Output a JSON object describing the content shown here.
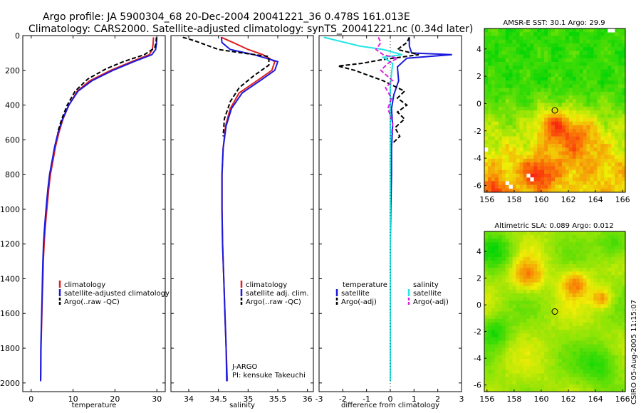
{
  "header": {
    "line1": "Argo profile: JA 5900304_68 20-Dec-2004 20041221_36 0.478S 161.013E",
    "line2": "Climatology: CARS2000. Satellite-adjusted climatology: synTS_20041221.nc (0.34d later)"
  },
  "timestamp": "CSIRO 05-Aug-2005 11:15:07",
  "colors": {
    "red": "#e02020",
    "blue": "#1a1adc",
    "black": "#000000",
    "cyan": "#22e5e5",
    "magenta": "#e020e0"
  },
  "chart_data": [
    {
      "type": "line",
      "title": "",
      "xlabel": "temperature",
      "ylabel": "",
      "xlim": [
        -2,
        32
      ],
      "ylim": [
        2050,
        0
      ],
      "xticks": [
        "0",
        "10",
        "20",
        "30"
      ],
      "yticks": [
        "0",
        "200",
        "400",
        "600",
        "800",
        "1000",
        "1200",
        "1400",
        "1600",
        "1800",
        "2000"
      ],
      "legend": [
        "climatology",
        "satellite-adjusted climatology",
        "Argo(..raw -QC)"
      ],
      "series": [
        {
          "name": "climatology",
          "color": "red",
          "dash": false,
          "x": [
            29.2,
            29.1,
            28.9,
            28.2,
            24,
            19,
            14,
            11,
            9,
            7.6,
            6.6,
            5.8,
            5.2,
            4.6,
            4.2,
            3.9,
            3.6,
            3.3,
            3.1,
            2.9,
            2.8,
            2.65,
            2.55,
            2.45,
            2.35,
            2.3
          ],
          "y": [
            10,
            50,
            80,
            110,
            150,
            200,
            260,
            320,
            400,
            480,
            560,
            640,
            720,
            800,
            880,
            960,
            1040,
            1120,
            1200,
            1300,
            1400,
            1500,
            1600,
            1700,
            1800,
            1980
          ]
        },
        {
          "name": "satellite-adjusted climatology",
          "color": "blue",
          "dash": false,
          "x": [
            30.0,
            29.9,
            29.7,
            28.8,
            24.5,
            19.5,
            14.5,
            11.2,
            9,
            7.5,
            6.4,
            5.6,
            5,
            4.4,
            4,
            3.7,
            3.4,
            3.15,
            2.95,
            2.8,
            2.7,
            2.6,
            2.5,
            2.4,
            2.3,
            2.25
          ],
          "y": [
            10,
            50,
            80,
            110,
            150,
            200,
            260,
            320,
            400,
            480,
            560,
            640,
            720,
            800,
            880,
            960,
            1040,
            1120,
            1200,
            1300,
            1400,
            1500,
            1600,
            1700,
            1800,
            1990
          ]
        },
        {
          "name": "Argo(..raw -QC)",
          "color": "black",
          "dash": true,
          "x": [
            29.9,
            29.8,
            29.5,
            27,
            22,
            18,
            13.5,
            10.5,
            8.6,
            7.3,
            6.3
          ],
          "y": [
            10,
            40,
            70,
            110,
            150,
            190,
            250,
            320,
            400,
            480,
            560
          ]
        }
      ]
    },
    {
      "type": "line",
      "title": "",
      "xlabel": "salinity",
      "ylabel": "",
      "xlim": [
        33.7,
        36.1
      ],
      "ylim": [
        2050,
        0
      ],
      "xticks": [
        "34",
        "34.5",
        "35",
        "35.5",
        "36"
      ],
      "legend": [
        "climatology",
        "satellite adj. clim.",
        "Argo(..raw -QC)"
      ],
      "annotation_lines": [
        "J-ARGO",
        "PI: kensuke Takeuchi"
      ],
      "series": [
        {
          "name": "climatology",
          "color": "red",
          "dash": false,
          "x": [
            34.55,
            34.75,
            35.0,
            35.25,
            35.45,
            35.4,
            35.15,
            34.85,
            34.7,
            34.62,
            34.58,
            34.56,
            34.56,
            34.57,
            34.59,
            34.61,
            34.63,
            34.65
          ],
          "y": [
            10,
            40,
            80,
            110,
            150,
            200,
            260,
            330,
            420,
            520,
            650,
            800,
            1000,
            1200,
            1400,
            1600,
            1800,
            1990
          ]
        },
        {
          "name": "satellite adj. clim.",
          "color": "blue",
          "dash": false,
          "x": [
            34.55,
            34.56,
            34.7,
            35.1,
            35.5,
            35.45,
            35.2,
            34.9,
            34.72,
            34.63,
            34.58,
            34.56,
            34.56,
            34.57,
            34.59,
            34.61,
            34.63,
            34.64
          ],
          "y": [
            10,
            40,
            80,
            110,
            150,
            200,
            260,
            330,
            420,
            520,
            650,
            800,
            1000,
            1200,
            1400,
            1600,
            1800,
            1990
          ]
        },
        {
          "name": "Argo(..raw -QC)",
          "color": "black",
          "dash": true,
          "x": [
            33.9,
            34.1,
            34.3,
            34.5,
            34.9,
            35.35,
            35.35,
            35.1,
            34.85,
            34.7,
            34.6,
            34.58
          ],
          "y": [
            10,
            30,
            55,
            80,
            100,
            120,
            170,
            230,
            300,
            380,
            480,
            580
          ]
        }
      ]
    },
    {
      "type": "line",
      "title": "",
      "xlabel": "difference from climatology",
      "ylabel": "",
      "xlim": [
        -3,
        3
      ],
      "ylim": [
        2050,
        0
      ],
      "xticks": [
        "-3",
        "-2",
        "-1",
        "0",
        "1",
        "2",
        "3"
      ],
      "legend": [
        "temperature",
        "satellite",
        "Argo(-adj)",
        "salinity",
        "satellite",
        "Argo(-adj)"
      ],
      "series": [
        {
          "name": "temperature satellite",
          "color": "blue",
          "dash": false,
          "x": [
            0.8,
            0.8,
            0.9,
            2.6,
            0.7,
            0.3,
            0.35,
            0.15,
            0.05,
            0.1,
            0.05,
            0.05,
            0.02,
            0,
            0,
            0,
            0,
            0
          ],
          "y": [
            10,
            60,
            100,
            110,
            130,
            180,
            260,
            340,
            420,
            520,
            650,
            800,
            1000,
            1200,
            1400,
            1600,
            1800,
            1990
          ]
        },
        {
          "name": "temperature Argo(-adj)",
          "color": "black",
          "dash": true,
          "x": [
            0.8,
            0.7,
            0.3,
            1.2,
            -0.4,
            -1.2,
            -2.2,
            -1.5,
            -0.3,
            0.6,
            0.3,
            0.7,
            0.3,
            0.6,
            0.2,
            0.4,
            0.1
          ],
          "y": [
            10,
            40,
            80,
            110,
            140,
            160,
            175,
            200,
            260,
            320,
            360,
            400,
            440,
            480,
            530,
            580,
            620
          ]
        },
        {
          "name": "salinity satellite",
          "color": "cyan",
          "dash": false,
          "x": [
            -2.8,
            -1.3,
            -0.3,
            0.5,
            -0.3,
            0.1,
            0.05,
            0,
            0,
            0,
            0,
            0,
            0
          ],
          "y": [
            10,
            60,
            80,
            110,
            125,
            160,
            220,
            300,
            400,
            600,
            1000,
            1500,
            1990
          ]
        },
        {
          "name": "salinity Argo(-adj)",
          "color": "magenta",
          "dash": true,
          "x": [
            -0.5,
            -0.4,
            -0.6,
            -0.3,
            0.3,
            -0.1,
            -0.4,
            0.1,
            -0.2,
            0.05,
            -0.1,
            0.1,
            0.05
          ],
          "y": [
            10,
            40,
            80,
            110,
            130,
            160,
            200,
            260,
            300,
            360,
            420,
            500,
            580
          ]
        }
      ]
    },
    {
      "type": "heatmap",
      "title": "AMSR-E SST: 30.1 Argo: 29.9",
      "xticks": [
        "156",
        "158",
        "160",
        "162",
        "164",
        "166"
      ],
      "yticks": [
        "4",
        "2",
        "0",
        "-2",
        "-4",
        "-6"
      ],
      "xlim": [
        155.8,
        166.2
      ],
      "ylim": [
        -6.5,
        5.5
      ],
      "marker": [
        161.0,
        -0.5
      ],
      "hotspots": [
        [
          162.5,
          -2.4,
          1.8
        ],
        [
          159.8,
          -5.2,
          1.2
        ],
        [
          156.5,
          -6.3,
          0.8
        ],
        [
          160.8,
          -1.5,
          1.2
        ]
      ]
    },
    {
      "type": "heatmap",
      "title": "Altimetric SLA: 0.089 Argo: 0.012",
      "xticks": [
        "156",
        "158",
        "160",
        "162",
        "164",
        "166"
      ],
      "yticks": [
        "4",
        "2",
        "0",
        "-2",
        "-4",
        "-6"
      ],
      "xlim": [
        155.8,
        166.2
      ],
      "ylim": [
        -6.5,
        5.5
      ],
      "marker": [
        161.0,
        -0.5
      ],
      "hotspots": [
        [
          159.0,
          2.2,
          1.2
        ],
        [
          162.5,
          1.6,
          1.0
        ],
        [
          164.5,
          0.5,
          0.8
        ]
      ]
    }
  ]
}
